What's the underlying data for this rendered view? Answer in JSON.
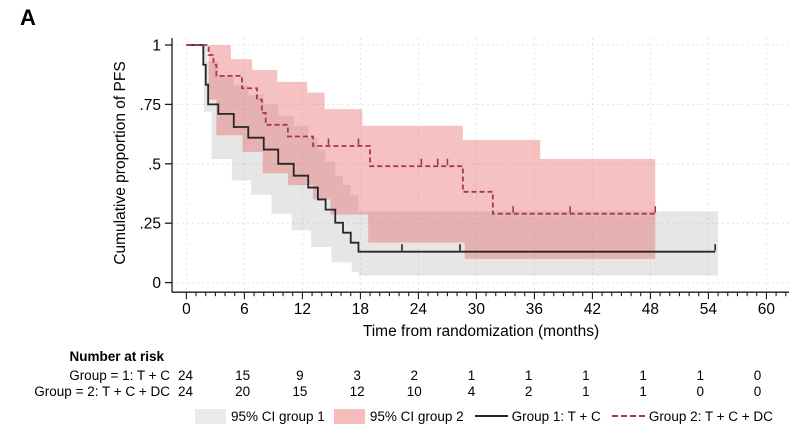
{
  "panel_label": "A",
  "colors": {
    "group1_line": "#262626",
    "group2_line": "#a63a4a",
    "ci_group1_fill": "rgba(165,165,165,0.28)",
    "ci_group2_fill": "rgba(230,92,92,0.38)",
    "gridline": "#e4e4e4",
    "axis": "#1a1a1a"
  },
  "chart_data": {
    "type": "line",
    "subtype": "kaplan-meier-step",
    "title": "",
    "xlabel": "Time from randomization (months)",
    "ylabel": "Cumulative proportion of PFS",
    "xlim": [
      0,
      60
    ],
    "ylim": [
      0,
      1
    ],
    "x_ticks": [
      0,
      6,
      12,
      18,
      24,
      30,
      36,
      42,
      48,
      54,
      60
    ],
    "x_minor_tick_step": 1,
    "y_ticks": [
      {
        "label": "0",
        "v": 0
      },
      {
        "label": ".25",
        "v": 0.25
      },
      {
        "label": ".5",
        "v": 0.5
      },
      {
        "label": ".75",
        "v": 0.75
      },
      {
        "label": "1",
        "v": 1
      }
    ],
    "grid": "both-light-dashed",
    "legend_position": "bottom",
    "series": [
      {
        "name": "Group 1: T + C",
        "style": "solid",
        "steps": [
          [
            0,
            1
          ],
          [
            1.75,
            0.917
          ],
          [
            2.0,
            0.833
          ],
          [
            2.25,
            0.75
          ],
          [
            3.3,
            0.71
          ],
          [
            4.9,
            0.655
          ],
          [
            6.4,
            0.61
          ],
          [
            8.0,
            0.56
          ],
          [
            9.5,
            0.5
          ],
          [
            11.1,
            0.45
          ],
          [
            12.6,
            0.4
          ],
          [
            13.6,
            0.35
          ],
          [
            14.4,
            0.307
          ],
          [
            15.4,
            0.252
          ],
          [
            16.2,
            0.21
          ],
          [
            17.0,
            0.168
          ],
          [
            17.8,
            0.13
          ]
        ],
        "end_month": 54.7,
        "censor_months": [
          22.3,
          28.3,
          54.7
        ]
      },
      {
        "name": "Group 2: T + C + DC",
        "style": "dashed",
        "steps": [
          [
            0,
            1
          ],
          [
            2.3,
            0.958
          ],
          [
            2.8,
            0.917
          ],
          [
            3.1,
            0.87
          ],
          [
            5.75,
            0.818
          ],
          [
            7.3,
            0.77
          ],
          [
            7.8,
            0.714
          ],
          [
            8.2,
            0.664
          ],
          [
            10.5,
            0.615
          ],
          [
            13.1,
            0.575
          ],
          [
            19.0,
            0.49
          ],
          [
            28.6,
            0.382
          ],
          [
            31.7,
            0.29
          ]
        ],
        "end_month": 48.5,
        "censor_months": [
          14.7,
          17.8,
          24.3,
          26.0,
          27.0,
          33.8,
          39.7,
          48.5
        ]
      }
    ],
    "ci_bands": [
      {
        "name": "95% CI group 1",
        "upper": [
          [
            1.8,
            1.0
          ],
          [
            2.2,
            0.93
          ],
          [
            3.3,
            0.87
          ],
          [
            4.9,
            0.83
          ],
          [
            6.4,
            0.79
          ],
          [
            8.0,
            0.75
          ],
          [
            9.5,
            0.7
          ],
          [
            11.1,
            0.66
          ],
          [
            12.6,
            0.61
          ],
          [
            13.6,
            0.56
          ],
          [
            14.4,
            0.51
          ],
          [
            15.4,
            0.45
          ],
          [
            16.2,
            0.41
          ],
          [
            17.0,
            0.37
          ],
          [
            17.8,
            0.3
          ]
        ],
        "lower": [
          [
            1.8,
            0.72
          ],
          [
            2.6,
            0.52
          ],
          [
            4.7,
            0.43
          ],
          [
            6.7,
            0.37
          ],
          [
            8.8,
            0.29
          ],
          [
            10.9,
            0.22
          ],
          [
            12.9,
            0.15
          ],
          [
            15.0,
            0.085
          ],
          [
            17.1,
            0.045
          ],
          [
            17.8,
            0.03
          ]
        ],
        "end_month": 55.0
      },
      {
        "name": "95% CI group 2",
        "upper": [
          [
            2.3,
            1.0
          ],
          [
            4.6,
            0.94
          ],
          [
            6.8,
            0.895
          ],
          [
            9.4,
            0.845
          ],
          [
            12.5,
            0.8
          ],
          [
            14.3,
            0.73
          ],
          [
            18.2,
            0.66
          ],
          [
            28.6,
            0.6
          ],
          [
            36.6,
            0.52
          ]
        ],
        "lower": [
          [
            2.3,
            0.77
          ],
          [
            3.1,
            0.62
          ],
          [
            5.8,
            0.55
          ],
          [
            7.9,
            0.46
          ],
          [
            10.5,
            0.41
          ],
          [
            13.1,
            0.35
          ],
          [
            14.9,
            0.286
          ],
          [
            18.8,
            0.168
          ],
          [
            28.8,
            0.1
          ]
        ],
        "end_month": 48.5
      }
    ]
  },
  "risk_table": {
    "header": "Number at risk",
    "time_points": [
      0,
      6,
      12,
      18,
      24,
      30,
      36,
      42,
      48,
      54,
      60
    ],
    "rows": [
      {
        "label": "Group = 1: T + C",
        "values": [
          24,
          15,
          9,
          3,
          2,
          1,
          1,
          1,
          1,
          1,
          0
        ]
      },
      {
        "label": "Group = 2: T + C + DC",
        "values": [
          24,
          20,
          15,
          12,
          10,
          4,
          2,
          1,
          1,
          0,
          0
        ]
      }
    ]
  },
  "legend": {
    "items": [
      {
        "label": "95% CI group 1",
        "swatch": "gray-box"
      },
      {
        "label": "95% CI group 2",
        "swatch": "pink-box"
      },
      {
        "label": "Group 1: T + C",
        "swatch": "solid-line"
      },
      {
        "label": "Group 2: T + C + DC",
        "swatch": "dashed-line"
      }
    ]
  }
}
